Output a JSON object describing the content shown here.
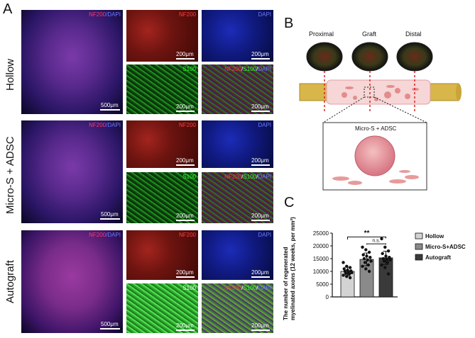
{
  "panels": {
    "a": "A",
    "b": "B",
    "c": "C"
  },
  "rows": [
    {
      "label": "Hollow"
    },
    {
      "label": "Micro-S + ADSC"
    },
    {
      "label": "Autograft"
    }
  ],
  "tags": {
    "nf200_dapi_1": "NF200",
    "nf200_dapi_2": "/DAPI",
    "nf200": "NF200",
    "dapi": "DAPI",
    "s100": "S100",
    "merge_nf": "NF200",
    "merge_sep": "/",
    "merge_s100": "S100",
    "merge_sep2": "/",
    "merge_dapi": "DAPI"
  },
  "scalebars": {
    "small": "200μm",
    "large": "500μm"
  },
  "schematic": {
    "proximal": "Proximal",
    "graft": "Graft",
    "distal": "Distal",
    "callout": "Micro-S + ADSC"
  },
  "colors": {
    "nf200": "#d42020",
    "dapi": "#2a3bd8",
    "s100": "#22c422",
    "nerve": "#d8b64a",
    "tube": "#f6d6d6"
  },
  "chart_data": {
    "type": "bar",
    "categories": [
      "Hollow",
      "Micro-S+ADSC",
      "Autograft"
    ],
    "values": [
      10000,
      14700,
      15300
    ],
    "errors": [
      1700,
      2500,
      2600
    ],
    "points": [
      [
        13500,
        12000,
        11500,
        11000,
        10500,
        10200,
        10000,
        9800,
        9500,
        9200,
        9000,
        8500,
        8000,
        7500
      ],
      [
        19500,
        18500,
        17500,
        16500,
        16000,
        15500,
        15000,
        14500,
        14000,
        13500,
        12500,
        12000,
        11000,
        10000
      ],
      [
        22800,
        19500,
        18000,
        17000,
        16000,
        15500,
        15000,
        14700,
        14500,
        14000,
        13500,
        12500,
        11500,
        9000
      ]
    ],
    "colors": [
      "#d3d3d3",
      "#8a8a8a",
      "#3a3a3a"
    ],
    "ylabel": "The number of regenerated",
    "ylabel2": "myelinated axons (12 weeks, per mm²)",
    "ylim": [
      0,
      25000
    ],
    "yticks": [
      "0",
      "5000",
      "10000",
      "15000",
      "20000",
      "25000"
    ],
    "sig1": "**",
    "sig2": "n.s.",
    "legend": [
      "Hollow",
      "Micro-S+ADSC",
      "Autograft"
    ]
  }
}
